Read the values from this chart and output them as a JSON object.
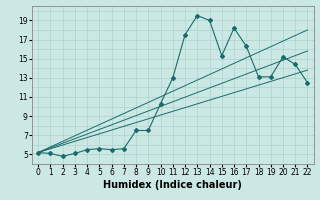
{
  "xlabel": "Humidex (Indice chaleur)",
  "x_data": [
    0,
    1,
    2,
    3,
    4,
    5,
    6,
    7,
    8,
    9,
    10,
    11,
    12,
    13,
    14,
    15,
    16,
    17,
    18,
    19,
    20,
    21,
    22
  ],
  "y_data": [
    5.2,
    5.1,
    4.8,
    5.1,
    5.5,
    5.6,
    5.5,
    5.6,
    7.5,
    7.5,
    10.3,
    13.0,
    17.5,
    19.5,
    19.0,
    15.3,
    18.2,
    16.3,
    13.1,
    13.1,
    15.2,
    14.4,
    12.5
  ],
  "bg_color": "#cce8e4",
  "line_color": "#1a6b6b",
  "grid_color": "#aad4cc",
  "xlim": [
    -0.5,
    22.5
  ],
  "ylim": [
    4.0,
    20.5
  ],
  "xticks": [
    0,
    1,
    2,
    3,
    4,
    5,
    6,
    7,
    8,
    9,
    10,
    11,
    12,
    13,
    14,
    15,
    16,
    17,
    18,
    19,
    20,
    21,
    22
  ],
  "yticks": [
    5,
    7,
    9,
    11,
    13,
    15,
    17,
    19
  ],
  "tick_fontsize": 5.5,
  "label_fontsize": 7,
  "line_starts": [
    5.2,
    5.2,
    5.2
  ],
  "line_ends": [
    13.8,
    15.8,
    18.0
  ]
}
